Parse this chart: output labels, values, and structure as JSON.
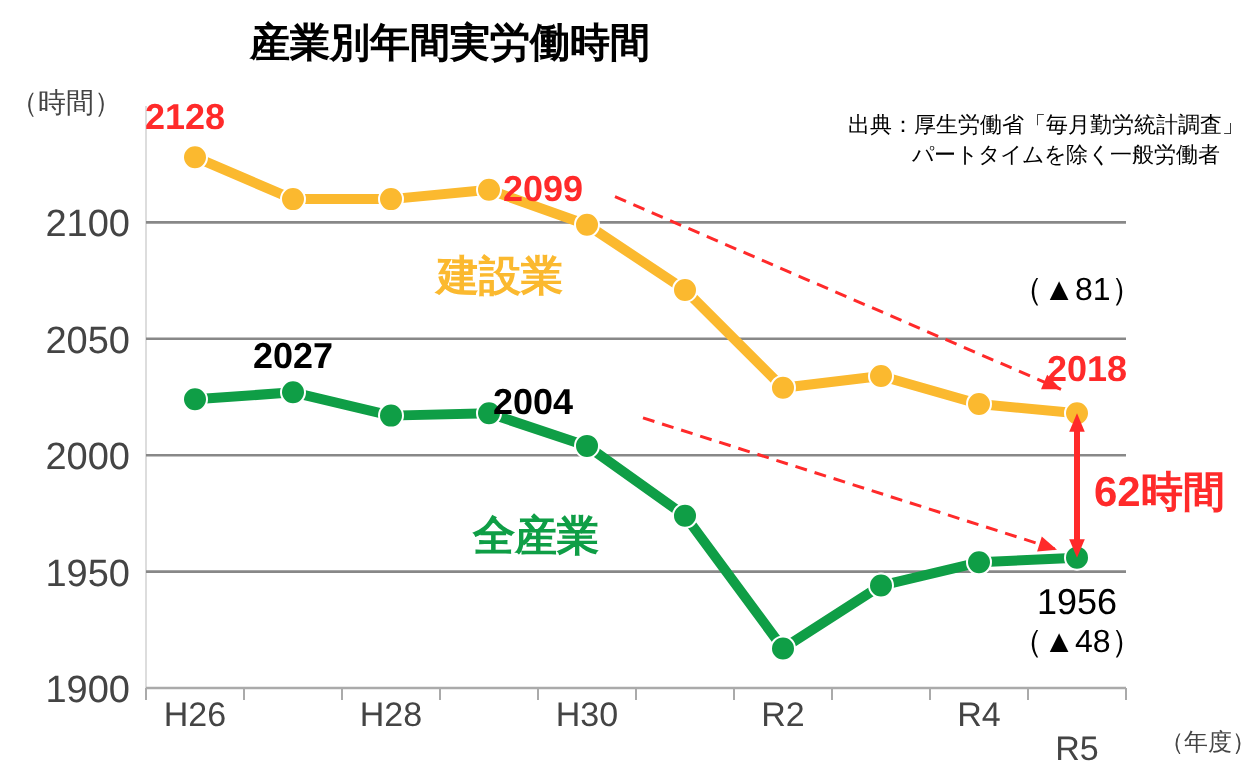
{
  "chart_data": {
    "type": "line",
    "title": "産業別年間実労働時間",
    "ylabel": "（時間）",
    "xlabel": "（年度）",
    "categories": [
      "H26",
      null,
      "H28",
      null,
      "H30",
      null,
      "R2",
      null,
      "R4",
      "R5"
    ],
    "series": [
      {
        "name": "建設業",
        "color": "#fbb92f",
        "values": [
          2128,
          2110,
          2110,
          2114,
          2099,
          2071,
          2029,
          2034,
          2022,
          2018
        ],
        "value_labels": [
          "2128",
          null,
          null,
          null,
          "2099",
          null,
          null,
          null,
          null,
          "2018"
        ]
      },
      {
        "name": "全産業",
        "color": "#0f9e46",
        "values": [
          2024,
          2027,
          2017,
          2018,
          2004,
          1974,
          1917,
          1944,
          1954,
          1956
        ],
        "value_labels": [
          null,
          "2027",
          null,
          null,
          "2004",
          null,
          null,
          null,
          null,
          "1956"
        ]
      }
    ],
    "ylim": [
      1900,
      2150
    ],
    "yticks": [
      1900,
      1950,
      2000,
      2050,
      2100
    ],
    "grid": "y",
    "marker": "circle",
    "line_style": "solid",
    "annotations": [
      "（▲81）",
      "（▲48）",
      "62時間",
      "出典：厚生労働省「毎月勤労統計調査」",
      "パートタイムを除く一般労働者"
    ]
  }
}
